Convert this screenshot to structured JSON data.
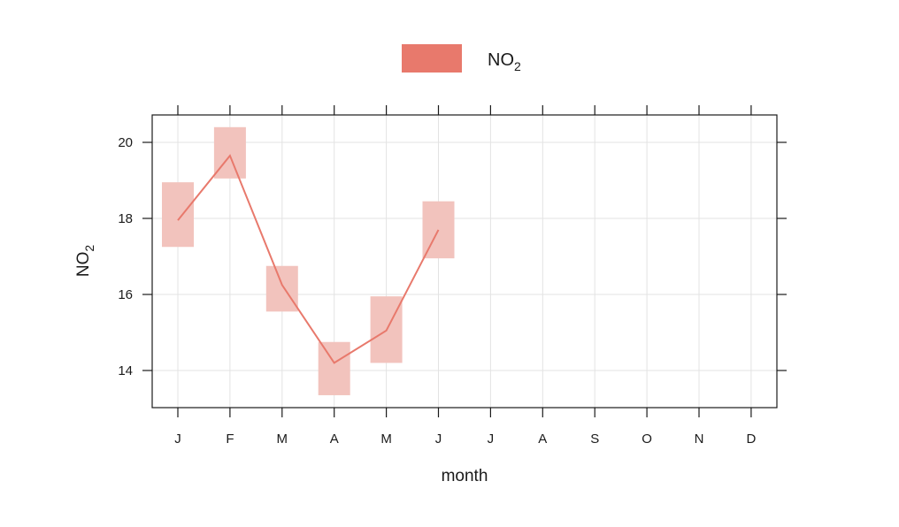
{
  "chart_data": {
    "type": "line",
    "title": "",
    "xlabel": "month",
    "ylabel": "NO2",
    "categories": [
      "J",
      "F",
      "M",
      "A",
      "M",
      "J",
      "J",
      "A",
      "S",
      "O",
      "N",
      "D"
    ],
    "ylim": [
      13.1,
      20.7
    ],
    "y_ticks": [
      14,
      16,
      18,
      20
    ],
    "grid": true,
    "legend_position": "top",
    "series": [
      {
        "name": "NO2",
        "color": "#e8796c",
        "band_color": "#f2c3bd",
        "values": [
          17.95,
          19.65,
          16.25,
          14.2,
          15.05,
          17.7,
          null,
          null,
          null,
          null,
          null,
          null
        ],
        "lower": [
          17.25,
          19.05,
          15.55,
          13.35,
          14.2,
          16.95,
          null,
          null,
          null,
          null,
          null,
          null
        ],
        "upper": [
          18.95,
          20.4,
          16.75,
          14.75,
          15.95,
          18.45,
          null,
          null,
          null,
          null,
          null,
          null
        ]
      }
    ]
  }
}
